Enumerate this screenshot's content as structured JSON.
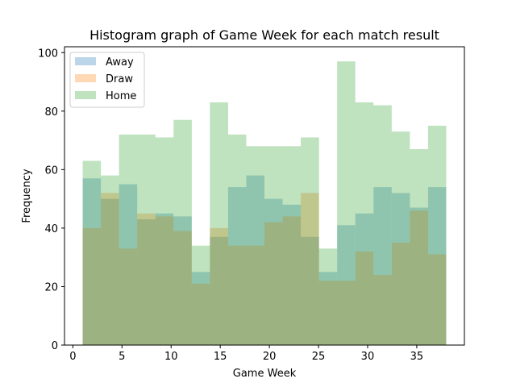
{
  "chart_data": {
    "type": "bar",
    "title": "Histogram graph of Game Week for each match result",
    "xlabel": "Game Week",
    "ylabel": "Frequency",
    "xlim": [
      -0.85,
      39.85
    ],
    "ylim": [
      0,
      102
    ],
    "xticks": [
      0,
      5,
      10,
      15,
      20,
      25,
      30,
      35
    ],
    "yticks": [
      0,
      20,
      40,
      60,
      80,
      100
    ],
    "legend_position": "top-left",
    "bin_edges": [
      1.0,
      2.85,
      4.7,
      6.55,
      8.4,
      10.25,
      12.1,
      13.95,
      15.8,
      17.65,
      19.5,
      21.35,
      23.2,
      25.05,
      26.9,
      28.75,
      30.6,
      32.45,
      34.3,
      36.15,
      38.0
    ],
    "series": [
      {
        "name": "Away",
        "color": "#1f77b4",
        "opacity": 0.3,
        "values": [
          57,
          50,
          55,
          43,
          45,
          44,
          25,
          37,
          54,
          58,
          50,
          48,
          37,
          25,
          41,
          45,
          54,
          52,
          47,
          54
        ]
      },
      {
        "name": "Draw",
        "color": "#ff7f0e",
        "opacity": 0.3,
        "values": [
          40,
          52,
          33,
          45,
          44,
          39,
          21,
          40,
          34,
          34,
          42,
          44,
          52,
          22,
          22,
          32,
          24,
          35,
          46,
          31
        ]
      },
      {
        "name": "Home",
        "color": "#2ca02c",
        "opacity": 0.3,
        "values": [
          63,
          58,
          72,
          72,
          71,
          77,
          34,
          83,
          72,
          68,
          68,
          68,
          71,
          33,
          97,
          83,
          82,
          73,
          67,
          75
        ]
      }
    ]
  }
}
